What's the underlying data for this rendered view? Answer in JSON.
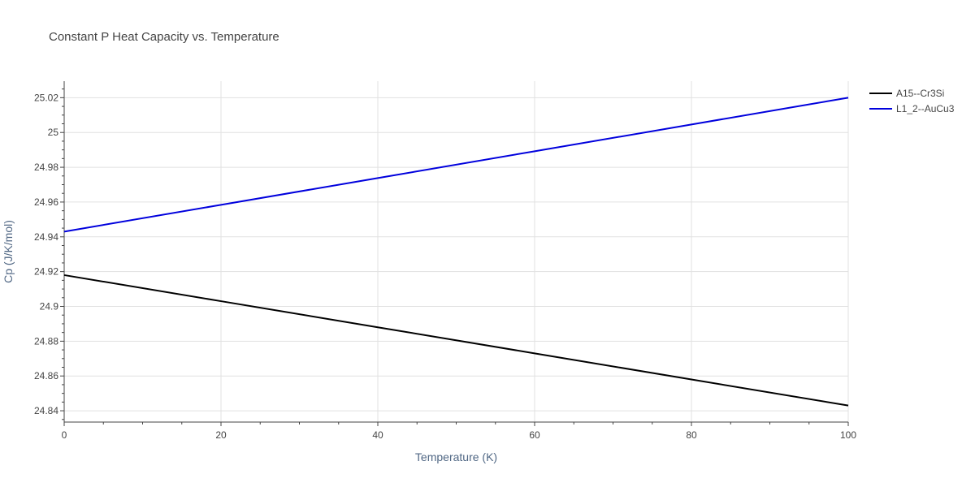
{
  "chart_data": {
    "type": "line",
    "title": "Constant P Heat Capacity vs. Temperature",
    "xlabel": "Temperature (K)",
    "ylabel": "Cp (J/K/mol)",
    "xlim": [
      0,
      100
    ],
    "ylim": [
      24.8335,
      25.0295
    ],
    "x_ticks": [
      0,
      20,
      40,
      60,
      80,
      100
    ],
    "x_tick_labels": [
      "0",
      "20",
      "40",
      "60",
      "80",
      "100"
    ],
    "y_ticks": [
      24.84,
      24.86,
      24.88,
      24.9,
      24.92,
      24.94,
      24.96,
      24.98,
      25.0,
      25.02
    ],
    "y_tick_labels": [
      "24.84",
      "24.86",
      "24.88",
      "24.9",
      "24.92",
      "24.94",
      "24.96",
      "24.98",
      "25",
      "25.02"
    ],
    "grid": true,
    "legend_position": "top-right",
    "series": [
      {
        "name": "A15--Cr3Si",
        "color": "#000000",
        "x": [
          0,
          20,
          40,
          60,
          80,
          100
        ],
        "y": [
          24.918,
          24.903,
          24.888,
          24.873,
          24.858,
          24.843
        ]
      },
      {
        "name": "L1_2--AuCu3",
        "color": "#0000dd",
        "x": [
          0,
          20,
          40,
          60,
          80,
          100
        ],
        "y": [
          24.943,
          24.9584,
          24.9738,
          24.9892,
          25.0046,
          25.02
        ]
      }
    ]
  }
}
